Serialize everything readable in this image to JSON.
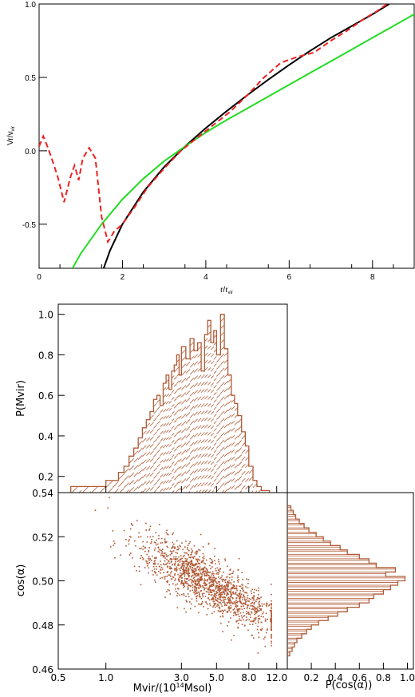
{
  "chart_data": [
    {
      "type": "line",
      "xlabel": "r/r",
      "xlabel_sub": "vir",
      "ylabel": "Vr/v",
      "ylabel_sub": "vir",
      "xlim": [
        0,
        9
      ],
      "ylim": [
        -0.8,
        1.0
      ],
      "xticks": [
        0,
        2,
        4,
        6,
        8
      ],
      "yticks": [
        -0.5,
        0.0,
        0.5,
        1.0
      ],
      "ytick_labels": [
        "-0.5",
        "0.0",
        "0.5",
        "1.0"
      ],
      "series": [
        {
          "color": "#000000",
          "style": "solid",
          "x": [
            1.55,
            1.7,
            2.0,
            2.5,
            3.0,
            3.5,
            4.0,
            4.5,
            5.0,
            5.5,
            6.0,
            6.5,
            7.0,
            7.5,
            8.0,
            8.4
          ],
          "y": [
            -0.8,
            -0.68,
            -0.5,
            -0.28,
            -0.11,
            0.03,
            0.155,
            0.27,
            0.38,
            0.485,
            0.585,
            0.68,
            0.77,
            0.85,
            0.93,
            1.0
          ]
        },
        {
          "color": "#22dd22",
          "style": "solid",
          "x": [
            0.8,
            1.0,
            1.5,
            2.0,
            2.5,
            3.0,
            3.5,
            4.0,
            4.5,
            5.0,
            5.5,
            6.0,
            6.5,
            7.0,
            7.5,
            8.0,
            8.5,
            9.0
          ],
          "y": [
            -0.8,
            -0.7,
            -0.5,
            -0.33,
            -0.19,
            -0.07,
            0.03,
            0.125,
            0.21,
            0.29,
            0.37,
            0.45,
            0.53,
            0.61,
            0.69,
            0.77,
            0.85,
            0.93
          ]
        },
        {
          "color": "#ee2222",
          "style": "dashed",
          "x": [
            0.0,
            0.1,
            0.2,
            0.3,
            0.45,
            0.6,
            0.75,
            0.85,
            0.95,
            1.05,
            1.2,
            1.35,
            1.5,
            1.65,
            1.8,
            2.0,
            2.3,
            2.6,
            3.0,
            3.4,
            3.8,
            4.2,
            4.6,
            5.0,
            5.4,
            5.8,
            6.2,
            6.6,
            7.0,
            7.4,
            7.8,
            8.1,
            8.35
          ],
          "y": [
            0.03,
            0.1,
            0.03,
            -0.05,
            -0.18,
            -0.35,
            -0.18,
            -0.1,
            -0.2,
            -0.05,
            0.02,
            -0.05,
            -0.45,
            -0.62,
            -0.55,
            -0.5,
            -0.38,
            -0.25,
            -0.12,
            0.0,
            0.09,
            0.18,
            0.27,
            0.38,
            0.5,
            0.6,
            0.64,
            0.67,
            0.75,
            0.82,
            0.9,
            0.95,
            1.0
          ]
        }
      ]
    },
    {
      "type": "histogram",
      "ylabel": "P(Mvir)",
      "xscale": "log",
      "xlim": [
        0.5,
        14.0
      ],
      "ylim": [
        0.12,
        1.05
      ],
      "yticks": [
        0.2,
        0.4,
        0.6,
        0.8,
        1.0
      ],
      "ytick_labels": [
        "0.2",
        "0.4",
        "0.6",
        "0.8",
        "1.0"
      ],
      "color": "#b05a35",
      "hatch": "diagonal",
      "bin_edges": [
        0.6,
        0.7,
        0.8,
        0.9,
        1.0,
        1.1,
        1.2,
        1.3,
        1.4,
        1.5,
        1.6,
        1.7,
        1.8,
        1.9,
        2.0,
        2.1,
        2.2,
        2.3,
        2.4,
        2.5,
        2.6,
        2.7,
        2.8,
        2.9,
        3.0,
        3.2,
        3.4,
        3.6,
        3.8,
        4.0,
        4.2,
        4.4,
        4.6,
        4.8,
        5.0,
        5.3,
        5.6,
        5.9,
        6.2,
        6.5,
        6.8,
        7.2,
        7.6,
        8.0,
        8.5,
        9.0,
        9.6,
        10.2,
        10.8
      ],
      "values": [
        0.15,
        0.15,
        0.15,
        0.15,
        0.18,
        0.18,
        0.22,
        0.25,
        0.3,
        0.34,
        0.39,
        0.44,
        0.48,
        0.52,
        0.58,
        0.6,
        0.55,
        0.66,
        0.7,
        0.63,
        0.72,
        0.75,
        0.8,
        0.7,
        0.84,
        0.78,
        0.88,
        0.82,
        0.86,
        0.72,
        0.9,
        0.97,
        0.86,
        0.92,
        0.8,
        1.0,
        0.83,
        0.7,
        0.6,
        0.56,
        0.5,
        0.42,
        0.35,
        0.25,
        0.18,
        0.15,
        0.13,
        0.13
      ]
    },
    {
      "type": "scatter",
      "xlabel": "Mvir/(10",
      "xlabel_sup": "14",
      "xlabel_end": "Msol)",
      "ylabel": "cos(α)",
      "xscale": "log",
      "xlim": [
        0.5,
        14.0
      ],
      "ylim": [
        0.46,
        0.54
      ],
      "xticks": [
        0.5,
        1.0,
        3.0,
        5.0,
        8.0,
        12.0
      ],
      "xtick_labels": [
        "0.5",
        "1.0",
        "3.0",
        "5.0",
        "8.0",
        "12.0"
      ],
      "yticks": [
        0.46,
        0.48,
        0.5,
        0.52,
        0.54
      ],
      "ytick_labels": [
        "0.46",
        "0.48",
        "0.50",
        "0.52",
        "0.54"
      ],
      "color": "#b05a35",
      "n_points": 1500,
      "trend": {
        "x": [
          0.9,
          2.0,
          4.0,
          6.0,
          10.0
        ],
        "y_center": [
          0.527,
          0.512,
          0.501,
          0.494,
          0.485
        ],
        "spread": 0.006
      }
    },
    {
      "type": "histogram",
      "orientation": "horizontal",
      "xlabel": "P(cos(α))",
      "xlim": [
        0.0,
        1.05
      ],
      "ylim": [
        0.46,
        0.54
      ],
      "xticks": [
        0.2,
        0.4,
        0.6,
        0.8,
        1.0
      ],
      "xtick_labels": [
        "0.2",
        "0.4",
        "0.6",
        "0.8",
        "1.0"
      ],
      "color": "#b05a35",
      "hatch": "horizontal",
      "bin_edges": [
        0.466,
        0.468,
        0.47,
        0.472,
        0.474,
        0.476,
        0.478,
        0.48,
        0.482,
        0.484,
        0.486,
        0.488,
        0.49,
        0.492,
        0.494,
        0.496,
        0.498,
        0.5,
        0.502,
        0.504,
        0.506,
        0.508,
        0.51,
        0.512,
        0.514,
        0.516,
        0.518,
        0.52,
        0.522,
        0.524,
        0.526,
        0.528,
        0.53,
        0.532,
        0.534
      ],
      "values": [
        0.02,
        0.04,
        0.06,
        0.08,
        0.12,
        0.16,
        0.2,
        0.26,
        0.34,
        0.42,
        0.5,
        0.6,
        0.68,
        0.72,
        0.8,
        0.86,
        0.92,
        0.98,
        0.82,
        0.9,
        0.74,
        0.68,
        0.6,
        0.5,
        0.44,
        0.36,
        0.3,
        0.24,
        0.18,
        0.14,
        0.1,
        0.07,
        0.05,
        0.03
      ]
    }
  ]
}
